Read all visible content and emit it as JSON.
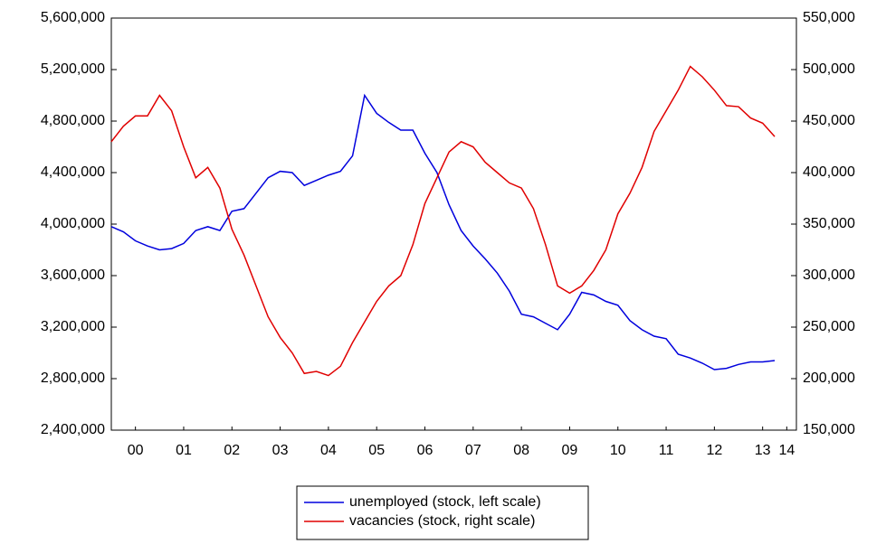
{
  "chart_data": {
    "type": "line",
    "x": [
      2000,
      2000.25,
      2000.5,
      2000.75,
      2001,
      2001.25,
      2001.5,
      2001.75,
      2002,
      2002.25,
      2002.5,
      2002.75,
      2003,
      2003.25,
      2003.5,
      2003.75,
      2004,
      2004.25,
      2004.5,
      2004.75,
      2005,
      2005.25,
      2005.5,
      2005.75,
      2006,
      2006.25,
      2006.5,
      2006.75,
      2007,
      2007.25,
      2007.5,
      2007.75,
      2008,
      2008.25,
      2008.5,
      2008.75,
      2009,
      2009.25,
      2009.5,
      2009.75,
      2010,
      2010.25,
      2010.5,
      2010.75,
      2011,
      2011.25,
      2011.5,
      2011.75,
      2012,
      2012.25,
      2012.5,
      2012.75,
      2013,
      2013.25,
      2013.5,
      2013.75
    ],
    "xlim": [
      2000,
      2014.2
    ],
    "xticks": [
      {
        "value": 2000.5,
        "label": "00"
      },
      {
        "value": 2001.5,
        "label": "01"
      },
      {
        "value": 2002.5,
        "label": "02"
      },
      {
        "value": 2003.5,
        "label": "03"
      },
      {
        "value": 2004.5,
        "label": "04"
      },
      {
        "value": 2005.5,
        "label": "05"
      },
      {
        "value": 2006.5,
        "label": "06"
      },
      {
        "value": 2007.5,
        "label": "07"
      },
      {
        "value": 2008.5,
        "label": "08"
      },
      {
        "value": 2009.5,
        "label": "09"
      },
      {
        "value": 2010.5,
        "label": "10"
      },
      {
        "value": 2011.5,
        "label": "11"
      },
      {
        "value": 2012.5,
        "label": "12"
      },
      {
        "value": 2013.5,
        "label": "13"
      },
      {
        "value": 2014.0,
        "label": "14"
      }
    ],
    "ylim": [
      2400000,
      5600000
    ],
    "yticks": [
      {
        "value": 2400000,
        "label": "2,400,000"
      },
      {
        "value": 2800000,
        "label": "2,800,000"
      },
      {
        "value": 3200000,
        "label": "3,200,000"
      },
      {
        "value": 3600000,
        "label": "3,600,000"
      },
      {
        "value": 4000000,
        "label": "4,000,000"
      },
      {
        "value": 4400000,
        "label": "4,400,000"
      },
      {
        "value": 4800000,
        "label": "4,800,000"
      },
      {
        "value": 5200000,
        "label": "5,200,000"
      },
      {
        "value": 5600000,
        "label": "5,600,000"
      }
    ],
    "y2lim": [
      150000,
      550000
    ],
    "y2ticks": [
      {
        "value": 150000,
        "label": "150,000"
      },
      {
        "value": 200000,
        "label": "200,000"
      },
      {
        "value": 250000,
        "label": "250,000"
      },
      {
        "value": 300000,
        "label": "300,000"
      },
      {
        "value": 350000,
        "label": "350,000"
      },
      {
        "value": 400000,
        "label": "400,000"
      },
      {
        "value": 450000,
        "label": "450,000"
      },
      {
        "value": 500000,
        "label": "500,000"
      },
      {
        "value": 550000,
        "label": "550,000"
      }
    ],
    "legend": "bottom",
    "series": [
      {
        "name": "unemployed (stock, left scale)",
        "color": "#0000dd",
        "values": [
          3980000,
          3940000,
          3870000,
          3830000,
          3800000,
          3810000,
          3850000,
          3950000,
          3980000,
          3950000,
          4100000,
          4120000,
          4240000,
          4360000,
          4410000,
          4400000,
          4300000,
          4340000,
          4380000,
          4410000,
          4530000,
          5000000,
          4860000,
          4790000,
          4730000,
          4730000,
          4550000,
          4400000,
          4150000,
          3950000,
          3830000,
          3730000,
          3620000,
          3480000,
          3300000,
          3280000,
          3230000,
          3180000,
          3300000,
          3470000,
          3450000,
          3400000,
          3370000,
          3250000,
          3180000,
          3130000,
          3110000,
          2990000,
          2960000,
          2920000,
          2870000,
          2880000,
          2910000,
          2930000,
          2930000,
          2940000
        ]
      },
      {
        "name": "vacancies (stock, right scale)",
        "color": "#e00000",
        "axis": "y2",
        "values": [
          430000,
          445000,
          455000,
          455000,
          475000,
          460000,
          425000,
          395000,
          405000,
          385000,
          345000,
          320000,
          290000,
          260000,
          240000,
          225000,
          205000,
          207000,
          203000,
          212000,
          235000,
          255000,
          275000,
          290000,
          300000,
          330000,
          370000,
          395000,
          420000,
          430000,
          425000,
          410000,
          400000,
          390000,
          385000,
          365000,
          330000,
          290000,
          283000,
          290000,
          305000,
          325000,
          360000,
          380000,
          405000,
          440000,
          460000,
          480000,
          503000,
          493000,
          480000,
          465000,
          464000,
          453000,
          448000,
          435000
        ]
      }
    ]
  }
}
